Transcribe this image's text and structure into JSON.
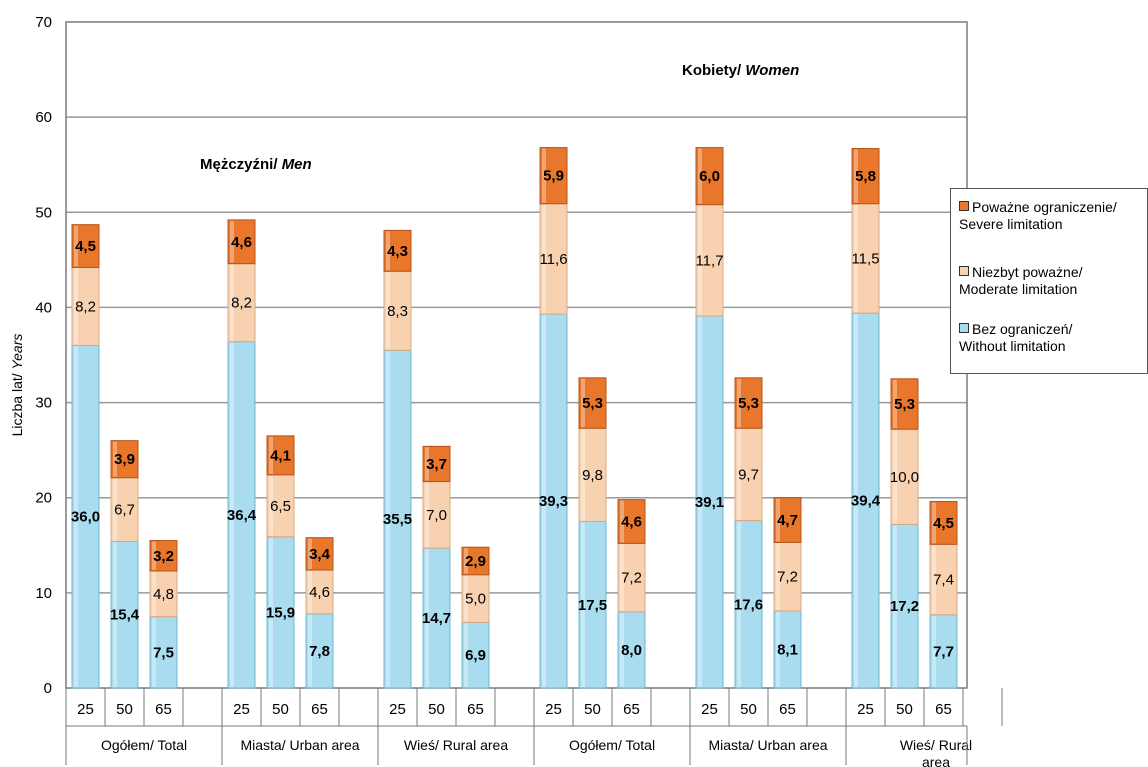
{
  "chart_data": {
    "type": "bar",
    "stacked": true,
    "ylabel_plain": "Liczba lat/ ",
    "ylabel_italic": "Years",
    "ylim": [
      0,
      70
    ],
    "yticks": [
      "0",
      "10",
      "20",
      "30",
      "40",
      "50",
      "60",
      "70"
    ],
    "grid": true,
    "legend_position": "right",
    "annotations": [
      {
        "plain": "Mężczyźni/ ",
        "italic": "Men"
      },
      {
        "plain": "Kobiety/ ",
        "italic": "Women"
      }
    ],
    "categories": [
      "25",
      "50",
      "65",
      "25",
      "50",
      "65",
      "25",
      "50",
      "65",
      "25",
      "50",
      "65",
      "25",
      "50",
      "65",
      "25",
      "50",
      "65"
    ],
    "groups": [
      [
        "Ogółem/ Total"
      ],
      [
        "Miasta/ Urban area"
      ],
      [
        "Wieś/ Rural area"
      ],
      [
        "Ogółem/ Total"
      ],
      [
        "Miasta/ Urban area"
      ],
      [
        "Wieś/ Rural",
        "area"
      ]
    ],
    "series": [
      {
        "name": "Bez ograniczeń/\nWithout limitation",
        "color": "#a9dcee",
        "values": [
          36.0,
          15.4,
          7.5,
          36.4,
          15.9,
          7.8,
          35.5,
          14.7,
          6.9,
          39.3,
          17.5,
          8.0,
          39.1,
          17.6,
          8.1,
          39.4,
          17.2,
          7.7
        ],
        "labels": [
          "36,0",
          "15,4",
          "7,5",
          "36,4",
          "15,9",
          "7,8",
          "35,5",
          "14,7",
          "6,9",
          "39,3",
          "17,5",
          "8,0",
          "39,1",
          "17,6",
          "8,1",
          "39,4",
          "17,2",
          "7,7"
        ]
      },
      {
        "name": "Niezbyt poważne/\nModerate limitation",
        "color": "#f8d2b0",
        "values": [
          8.2,
          6.7,
          4.8,
          8.2,
          6.5,
          4.6,
          8.3,
          7.0,
          5.0,
          11.6,
          9.8,
          7.2,
          11.7,
          9.7,
          7.2,
          11.5,
          10.0,
          7.4
        ],
        "labels": [
          "8,2",
          "6,7",
          "4,8",
          "8,2",
          "6,5",
          "4,6",
          "8,3",
          "7,0",
          "5,0",
          "11,6",
          "9,8",
          "7,2",
          "11,7",
          "9,7",
          "7,2",
          "11,5",
          "10,0",
          "7,4"
        ]
      },
      {
        "name": "Poważne ograniczenie/\nSevere limitation",
        "color": "#e8762b",
        "values": [
          4.5,
          3.9,
          3.2,
          4.6,
          4.1,
          3.4,
          4.3,
          3.7,
          2.9,
          5.9,
          5.3,
          4.6,
          6.0,
          5.3,
          4.7,
          5.8,
          5.3,
          4.5
        ],
        "labels": [
          "4,5",
          "3,9",
          "3,2",
          "4,6",
          "4,1",
          "3,4",
          "4,3",
          "3,7",
          "2,9",
          "5,9",
          "5,3",
          "4,6",
          "6,0",
          "5,3",
          "4,7",
          "5,8",
          "5,3",
          "4,5"
        ]
      }
    ]
  }
}
